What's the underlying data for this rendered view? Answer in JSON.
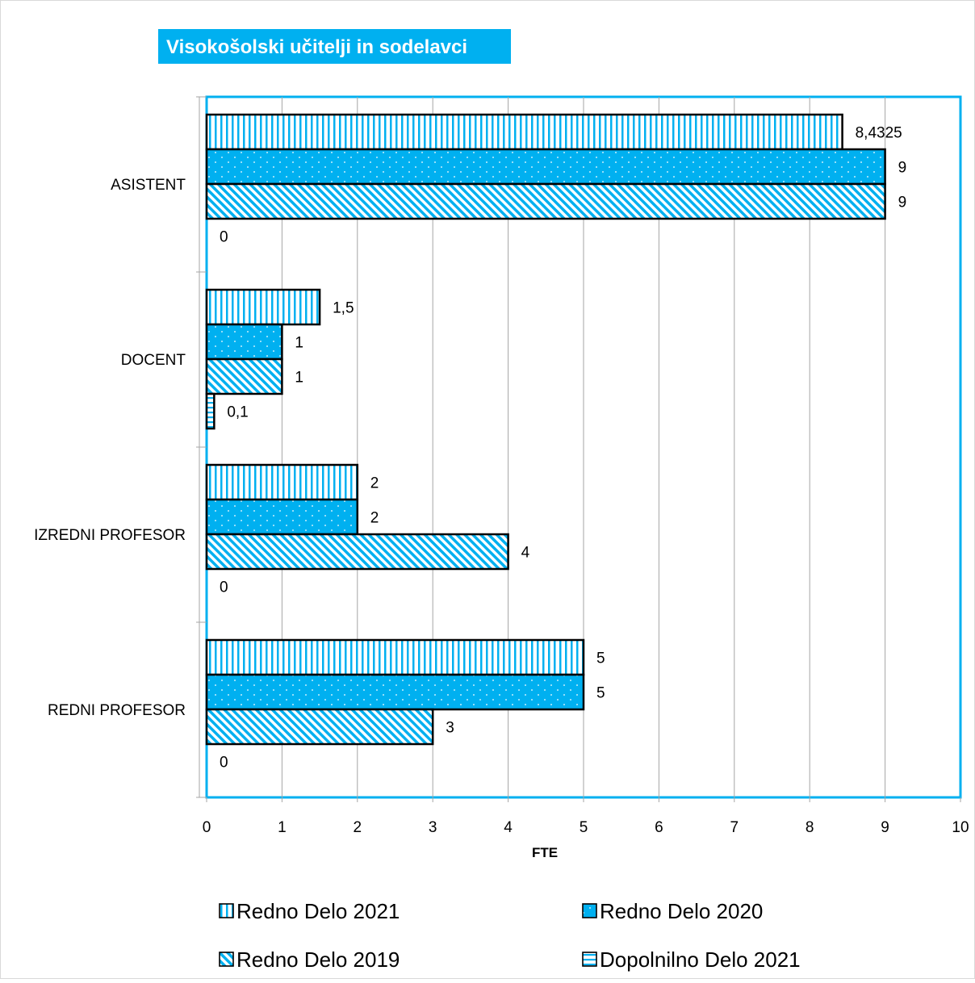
{
  "chart_data": {
    "type": "bar",
    "orientation": "horizontal",
    "title": "Visokošolski učitelji in sodelavci",
    "xlabel": "FTE",
    "ylabel": "",
    "xlim": [
      0,
      10
    ],
    "x_ticks": [
      "0",
      "1",
      "2",
      "3",
      "4",
      "5",
      "6",
      "7",
      "8",
      "9",
      "10"
    ],
    "grid": true,
    "legend_position": "bottom",
    "categories": [
      "ASISTENT",
      "DOCENT",
      "IZREDNI PROFESOR",
      "REDNI PROFESOR"
    ],
    "series": [
      {
        "name": "Redno Delo 2021",
        "values": [
          8.4325,
          1.5,
          2,
          5
        ],
        "labels": [
          "8,4325",
          "1,5",
          "2",
          "5"
        ],
        "pattern": "vertical-stripes",
        "color": "#00B0F0"
      },
      {
        "name": "Redno Delo 2020",
        "values": [
          9,
          1,
          2,
          5
        ],
        "labels": [
          "9",
          "1",
          "2",
          "5"
        ],
        "pattern": "dotted",
        "color": "#00B0F0"
      },
      {
        "name": "Redno Delo 2019",
        "values": [
          9,
          1,
          4,
          3
        ],
        "labels": [
          "9",
          "1",
          "4",
          "3"
        ],
        "pattern": "diagonal-stripes",
        "color": "#00B0F0"
      },
      {
        "name": "Dopolnilno Delo 2021",
        "values": [
          0,
          0.1,
          0,
          0
        ],
        "labels": [
          "0",
          "0,1",
          "0",
          "0"
        ],
        "pattern": "horizontal-stripes",
        "color": "#00B0F0"
      }
    ],
    "colors": {
      "accent": "#00B0F0",
      "border": "#000000",
      "grid": "#A6A6A6",
      "title_text": "#FFFFFF"
    }
  }
}
